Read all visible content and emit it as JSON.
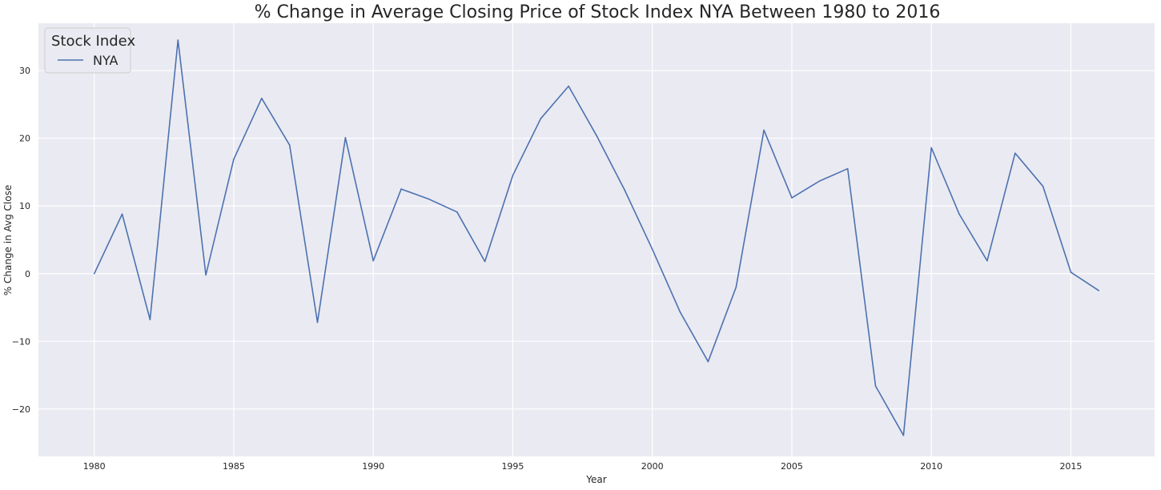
{
  "chart_data": {
    "type": "line",
    "title": "% Change in Average Closing Price of Stock Index NYA Between 1980 to 2016",
    "xlabel": "Year",
    "ylabel": "% Change in Avg Close",
    "xlim": [
      1978,
      2018
    ],
    "ylim": [
      -27,
      37
    ],
    "x_ticks": [
      1980,
      1985,
      1990,
      1995,
      2000,
      2005,
      2010,
      2015
    ],
    "y_ticks": [
      -20,
      -10,
      0,
      10,
      20,
      30
    ],
    "grid": true,
    "legend": {
      "title": "Stock Index",
      "position": "top-left"
    },
    "x": [
      1980,
      1981,
      1982,
      1983,
      1984,
      1985,
      1986,
      1987,
      1988,
      1989,
      1990,
      1991,
      1992,
      1993,
      1994,
      1995,
      1996,
      1997,
      1998,
      1999,
      2000,
      2001,
      2002,
      2003,
      2004,
      2005,
      2006,
      2007,
      2008,
      2009,
      2010,
      2011,
      2012,
      2013,
      2014,
      2015,
      2016
    ],
    "series": [
      {
        "name": "NYA",
        "color": "#4c72b0",
        "values": [
          0.0,
          8.8,
          -6.8,
          34.5,
          -0.2,
          16.9,
          25.9,
          19.0,
          -7.2,
          20.1,
          1.9,
          12.5,
          11.0,
          9.1,
          1.8,
          14.5,
          22.9,
          27.7,
          20.4,
          12.4,
          3.6,
          -5.7,
          -13.0,
          -2.0,
          21.2,
          11.2,
          13.7,
          15.5,
          -16.6,
          -23.9,
          18.6,
          8.8,
          1.9,
          17.8,
          12.9,
          0.2,
          -2.5
        ]
      }
    ]
  }
}
